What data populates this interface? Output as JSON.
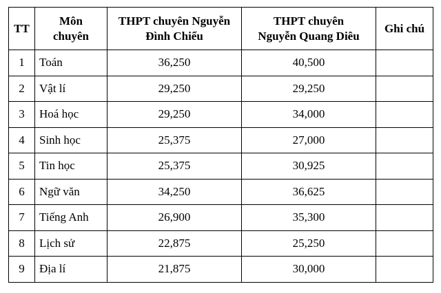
{
  "table": {
    "header": [
      "TT",
      "Môn\nchuyên",
      "THPT chuyên Nguyễn\nĐình Chiểu",
      "THPT chuyên\nNguyễn Quang Diêu",
      "Ghi chú"
    ],
    "rows": [
      [
        "1",
        "Toán",
        "36,250",
        "40,500",
        ""
      ],
      [
        "2",
        "Vật lí",
        "29,250",
        "29,250",
        ""
      ],
      [
        "3",
        "Hoá học",
        "29,250",
        "34,000",
        ""
      ],
      [
        "4",
        "Sinh học",
        "25,375",
        "27,000",
        ""
      ],
      [
        "5",
        "Tin học",
        "25,375",
        "30,925",
        ""
      ],
      [
        "6",
        "Ngữ văn",
        "34,250",
        "36,625",
        ""
      ],
      [
        "7",
        "Tiếng Anh",
        "26,900",
        "35,300",
        ""
      ],
      [
        "8",
        "Lịch sử",
        "22,875",
        "25,250",
        ""
      ],
      [
        "9",
        "Địa lí",
        "21,875",
        "30,000",
        ""
      ]
    ]
  }
}
